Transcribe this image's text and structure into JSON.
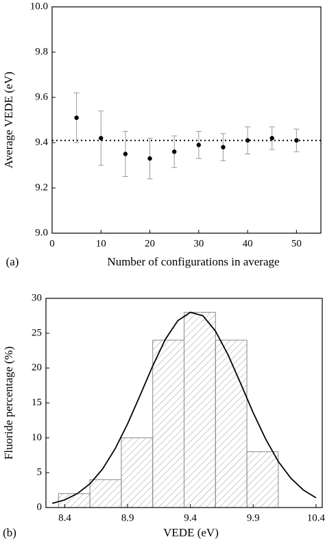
{
  "chart_data": [
    {
      "type": "scatter",
      "panel_label": "(a)",
      "x_label": "Number of configurations in average",
      "y_label": "Average VEDE (eV)",
      "x": [
        5,
        10,
        15,
        20,
        25,
        30,
        35,
        40,
        45,
        50
      ],
      "series": [
        {
          "color": "#000000",
          "values": [
            9.51,
            9.42,
            9.35,
            9.33,
            9.36,
            9.39,
            9.38,
            9.41,
            9.42,
            9.41
          ],
          "errors": [
            0.11,
            0.12,
            0.1,
            0.09,
            0.07,
            0.06,
            0.06,
            0.06,
            0.05,
            0.05
          ]
        }
      ],
      "error_color": "#999999",
      "reference_line": 9.41,
      "xlim": [
        0,
        55
      ],
      "xticks": [
        0,
        10,
        20,
        30,
        40,
        50
      ],
      "ylim": [
        9.0,
        10.0
      ],
      "yticks": [
        {
          "value": 9.0,
          "label": "9.0"
        },
        {
          "value": 9.2,
          "label": "9.2"
        },
        {
          "value": 9.4,
          "label": "9.4"
        },
        {
          "value": 9.6,
          "label": "9.6"
        },
        {
          "value": 9.8,
          "label": "9.8"
        },
        {
          "value": 10.0,
          "label": "10.0"
        }
      ]
    },
    {
      "type": "histogram",
      "panel_label": "(b)",
      "x_label": "VEDE (eV)",
      "y_label": "Fluoride percentage (%)",
      "bins": [
        8.35,
        8.6,
        8.85,
        9.1,
        9.35,
        9.6,
        9.85,
        10.1
      ],
      "values": [
        2,
        4,
        10,
        24,
        28,
        24,
        8
      ],
      "color": "#888888",
      "curve": {
        "color": "#000000",
        "x": [
          8.3,
          8.4,
          8.5,
          8.6,
          8.7,
          8.8,
          8.9,
          9.0,
          9.1,
          9.2,
          9.3,
          9.4,
          9.5,
          9.6,
          9.7,
          9.8,
          9.9,
          10.0,
          10.1,
          10.2,
          10.3,
          10.4
        ],
        "values": [
          0.6,
          1.1,
          2.0,
          3.4,
          5.5,
          8.4,
          12.0,
          16.1,
          20.3,
          24.1,
          26.8,
          28.0,
          27.5,
          25.3,
          21.9,
          17.8,
          13.6,
          9.8,
          6.6,
          4.2,
          2.5,
          1.4
        ]
      },
      "xlim": [
        8.25,
        10.45
      ],
      "xticks": [
        8.4,
        8.9,
        9.4,
        9.9,
        10.4
      ],
      "ylim": [
        0,
        30
      ],
      "yticks": [
        0,
        5,
        10,
        15,
        20,
        25,
        30
      ]
    }
  ]
}
